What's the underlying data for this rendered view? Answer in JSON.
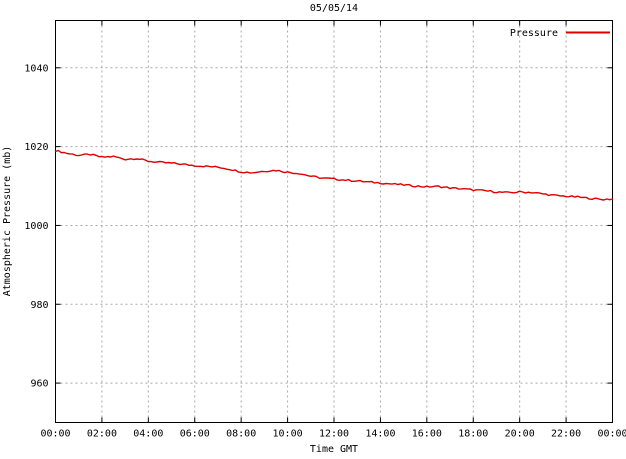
{
  "chart_data": {
    "type": "line",
    "title": "05/05/14",
    "xlabel": "Time GMT",
    "ylabel": "Atmospheric Pressure (mb)",
    "xlim": [
      0,
      24
    ],
    "ylim": [
      950,
      1052
    ],
    "grid": true,
    "legend_position": "top-right",
    "x_tick_labels": [
      "00:00",
      "02:00",
      "04:00",
      "06:00",
      "08:00",
      "10:00",
      "12:00",
      "14:00",
      "16:00",
      "18:00",
      "20:00",
      "22:00",
      "00:00"
    ],
    "x_tick_values": [
      0,
      2,
      4,
      6,
      8,
      10,
      12,
      14,
      16,
      18,
      20,
      22,
      24
    ],
    "y_tick_values": [
      960,
      980,
      1000,
      1020,
      1040
    ],
    "series": [
      {
        "name": "Pressure",
        "color": "#dd0000",
        "x": [
          0,
          0.5,
          1,
          1.5,
          2,
          2.5,
          3,
          3.5,
          4,
          4.5,
          5,
          5.5,
          6,
          6.5,
          7,
          7.5,
          8,
          8.5,
          9,
          9.5,
          10,
          10.5,
          11,
          11.5,
          12,
          12.5,
          13,
          13.5,
          14,
          14.5,
          15,
          15.5,
          16,
          16.5,
          17,
          17.5,
          18,
          18.5,
          19,
          19.5,
          20,
          20.5,
          21,
          21.5,
          22,
          22.5,
          23,
          23.5,
          24
        ],
        "y": [
          1019.0,
          1018.3,
          1017.8,
          1018.0,
          1017.3,
          1017.5,
          1016.8,
          1017.0,
          1016.3,
          1016.0,
          1015.8,
          1015.5,
          1015.2,
          1015.0,
          1014.8,
          1014.3,
          1013.6,
          1013.4,
          1013.8,
          1014.0,
          1013.5,
          1013.2,
          1012.5,
          1012.0,
          1011.8,
          1011.5,
          1011.3,
          1011.0,
          1010.8,
          1010.5,
          1010.3,
          1010.0,
          1009.8,
          1009.9,
          1009.5,
          1009.3,
          1009.0,
          1008.8,
          1008.5,
          1008.3,
          1008.5,
          1008.4,
          1008.0,
          1007.6,
          1007.4,
          1007.2,
          1006.9,
          1006.6,
          1006.7
        ]
      }
    ],
    "colors": {
      "line": "#dd0000",
      "grid": "#a8a8a8",
      "border": "#000000",
      "text": "#000000",
      "background": "#ffffff"
    }
  }
}
